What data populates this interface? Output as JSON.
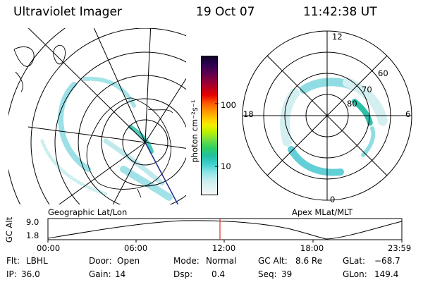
{
  "header": {
    "title": "Ultraviolet Imager",
    "date": "19 Oct 07",
    "time": "11:42:38 UT"
  },
  "left_panel": {
    "caption": "Geographic Lat/Lon"
  },
  "right_panel": {
    "caption": "Apex MLat/MLT",
    "mlt_labels": {
      "top": "12",
      "left": "18",
      "right": "6",
      "bottom": "0"
    },
    "lat_labels": [
      "60",
      "70",
      "80"
    ]
  },
  "colorbar": {
    "unit_label": "photon cm⁻²s⁻¹",
    "ticks": [
      "100",
      "10"
    ]
  },
  "altitude_plot": {
    "ylabel": "GC Alt",
    "y_ticks": [
      "9.0",
      "1.8"
    ],
    "x_ticks": [
      "00:00",
      "06:00",
      "12:00",
      "18:00",
      "23:59"
    ],
    "current_time_marker": "11:42:38"
  },
  "info": {
    "row1": [
      {
        "label": "Flt:",
        "value": "LBHL"
      },
      {
        "label": "Door:",
        "value": "Open"
      },
      {
        "label": "Mode:",
        "value": "Normal"
      },
      {
        "label": "GC Alt:",
        "value": "8.6 Re"
      },
      {
        "label": "GLat:",
        "value": "−68.7"
      }
    ],
    "row2": [
      {
        "label": "IP:",
        "value": "36.0"
      },
      {
        "label": "Gain:",
        "value": "14"
      },
      {
        "label": "Dsp:",
        "value": "0.4"
      },
      {
        "label": "Seq:",
        "value": "39"
      },
      {
        "label": "GLon:",
        "value": "149.4"
      }
    ]
  },
  "colors": {
    "aurora": "#7fd8df",
    "aurora_bright": "#32c2b0",
    "marker": "#e03020"
  }
}
